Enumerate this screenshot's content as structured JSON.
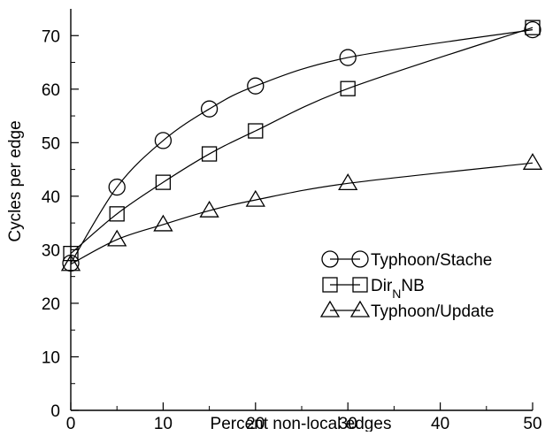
{
  "chart_data": {
    "type": "line",
    "title": "",
    "xlabel": "Percent non-local edges",
    "ylabel": "Cycles per edge",
    "xlim": [
      0,
      50
    ],
    "ylim": [
      0,
      75
    ],
    "xticks": [
      0,
      10,
      20,
      30,
      40,
      50
    ],
    "yticks": [
      0,
      10,
      20,
      30,
      40,
      50,
      60,
      70
    ],
    "xtick_labels": [
      "0",
      "10",
      "20",
      "30",
      "40",
      "50"
    ],
    "ytick_labels": [
      "0",
      "10",
      "20",
      "30",
      "40",
      "50",
      "60",
      "70"
    ],
    "grid": false,
    "legend_position": "center-right",
    "series": [
      {
        "name": "Typhoon/Stache",
        "marker": "circle",
        "x": [
          0,
          5,
          10,
          15,
          20,
          30,
          50
        ],
        "y": [
          27.5,
          41.7,
          50.4,
          56.3,
          60.6,
          65.9,
          71.1
        ]
      },
      {
        "name": "DirNNB",
        "marker": "square",
        "x": [
          0,
          5,
          10,
          15,
          20,
          30,
          50
        ],
        "y": [
          29.3,
          36.7,
          42.6,
          47.9,
          52.2,
          60.1,
          71.5
        ]
      },
      {
        "name": "Typhoon/Update",
        "marker": "triangle",
        "x": [
          0,
          5,
          10,
          15,
          20,
          30,
          50
        ],
        "y": [
          27.3,
          31.9,
          34.7,
          37.3,
          39.3,
          42.4,
          46.2
        ]
      }
    ],
    "legend_label_parts": {
      "DirNNB": {
        "main": "Dir",
        "sub": "N",
        "tail": "NB"
      }
    }
  }
}
